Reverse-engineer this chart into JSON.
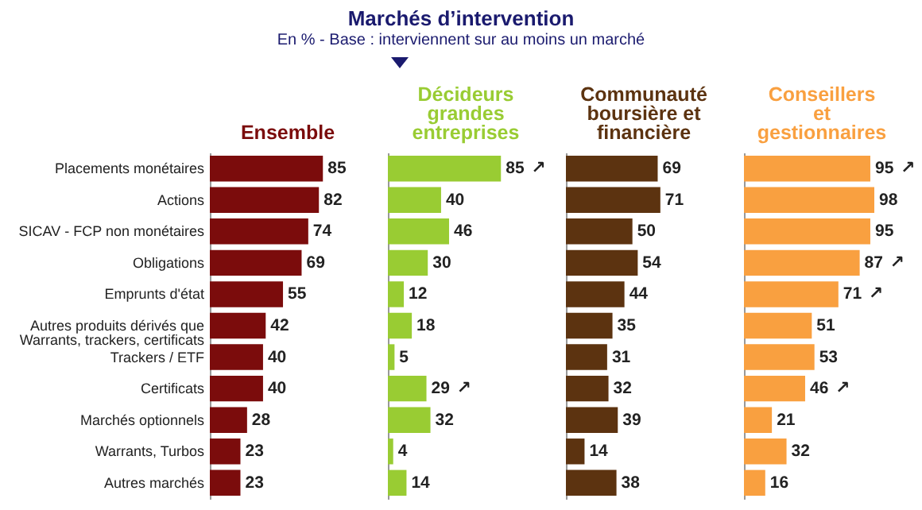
{
  "chart_data": [
    {
      "type": "other",
      "title": "Marchés d’intervention",
      "subtitle": "En % - Base : interviennent sur au moins un marché"
    },
    {
      "type": "bar",
      "orientation": "horizontal",
      "title": "Ensemble",
      "categories": [
        "Placements monétaires",
        "Actions",
        "SICAV - FCP non monétaires",
        "Obligations",
        "Emprunts d'état",
        "Autres produits dérivés que\nWarrants, trackers, certificats",
        "Trackers / ETF",
        "Certificats",
        "Marchés optionnels",
        "Warrants, Turbos",
        "Autres marchés"
      ],
      "series": [
        {
          "color": "#7b0c0c",
          "values": [
            85,
            82,
            74,
            69,
            55,
            42,
            40,
            40,
            28,
            23,
            23
          ]
        }
      ],
      "data_labels": true,
      "tick_labels": "y"
    },
    {
      "type": "bar",
      "orientation": "horizontal",
      "title": "Décideurs\ngrandes\nentreprises",
      "categories": [
        "Placements monétaires",
        "Actions",
        "SICAV - FCP non monétaires",
        "Obligations",
        "Emprunts d'état",
        "Autres produits dérivés que\nWarrants, trackers, certificats",
        "Trackers / ETF",
        "Certificats",
        "Marchés optionnels",
        "Warrants, Turbos",
        "Autres marchés"
      ],
      "series": [
        {
          "color": "#99cc33",
          "values": [
            85,
            40,
            46,
            30,
            12,
            18,
            5,
            29,
            32,
            4,
            14
          ]
        }
      ],
      "data_labels": true,
      "tick_labels": false,
      "annotations": [
        {
          "text": "↗",
          "x": 85,
          "y": "Placements monétaires"
        },
        {
          "text": "↗",
          "x": 29,
          "y": "Certificats"
        }
      ]
    },
    {
      "type": "bar",
      "orientation": "horizontal",
      "title": "Communauté\nboursière et\nfinancière",
      "categories": [
        "Placements monétaires",
        "Actions",
        "SICAV - FCP non monétaires",
        "Obligations",
        "Emprunts d'état",
        "Autres produits dérivés que\nWarrants, trackers, certificats",
        "Trackers / ETF",
        "Certificats",
        "Marchés optionnels",
        "Warrants, Turbos",
        "Autres marchés"
      ],
      "series": [
        {
          "color": "#5c3310",
          "values": [
            69,
            71,
            50,
            54,
            44,
            35,
            31,
            32,
            39,
            14,
            38
          ]
        }
      ],
      "data_labels": true,
      "tick_labels": false
    },
    {
      "type": "bar",
      "orientation": "horizontal",
      "title": "Conseillers\net\ngestionnaires",
      "categories": [
        "Placements monétaires",
        "Actions",
        "SICAV - FCP non monétaires",
        "Obligations",
        "Emprunts d'état",
        "Autres produits dérivés que\nWarrants, trackers, certificats",
        "Trackers / ETF",
        "Certificats",
        "Marchés optionnels",
        "Warrants, Turbos",
        "Autres marchés"
      ],
      "series": [
        {
          "color": "#f9a040",
          "values": [
            95,
            98,
            95,
            87,
            71,
            51,
            53,
            46,
            21,
            32,
            16
          ]
        }
      ],
      "data_labels": true,
      "tick_labels": false,
      "annotations": [
        {
          "text": "↗",
          "x": 95,
          "y": "Placements monétaires"
        },
        {
          "text": "↗",
          "x": 87,
          "y": "Obligations"
        },
        {
          "text": "↗",
          "x": 71,
          "y": "Emprunts d'état"
        },
        {
          "text": "↗",
          "x": 46,
          "y": "Certificats"
        }
      ]
    }
  ]
}
